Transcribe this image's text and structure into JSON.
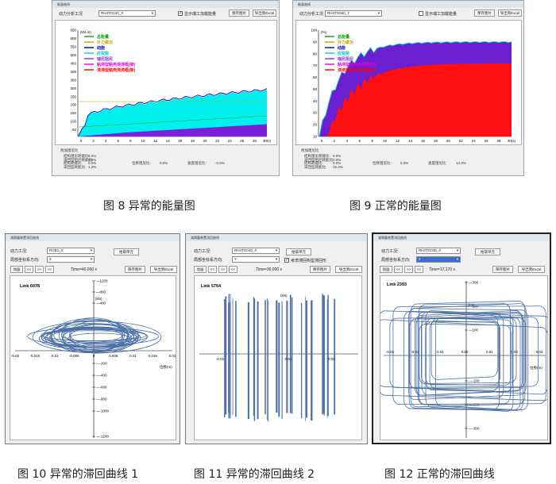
{
  "energy_common": {
    "condition_label": "动力分析工况",
    "show_rayleigh_label": "显示瑞工加载能量",
    "save_label": "保存图片",
    "export_label": "导出到Excel",
    "legend": [
      "总能量",
      "外力做功",
      "动能",
      "应变能",
      "瑞尼阻尼",
      "粘滞型粘壳滞滞框(架)",
      "滞滞型粘壳滞滞框(架)"
    ],
    "legend_colors": [
      "#00aa00",
      "#c8a000",
      "#0000cc",
      "#00cccc",
      "#8a2be2",
      "#dd00dd",
      "#ff0000"
    ],
    "info_title": "附加阻尼比",
    "info_rows": [
      "结构阻尼耗能比:",
      "滞回型阻尼耗能比:",
      "结构耗能比:",
      "滞回型耗能比:"
    ]
  },
  "fig8": {
    "window_title": "能量曲线",
    "condition_value": "RH4TG040_X",
    "y_ticks": [
      "650",
      "600",
      "550",
      "500",
      "450",
      "400",
      "350",
      "300",
      "250",
      "200",
      "150",
      "100",
      "50"
    ],
    "x_ticks": [
      "0",
      "2",
      "4",
      "6",
      "8",
      "10",
      "12",
      "14",
      "16",
      "18",
      "20",
      "22",
      "24",
      "26",
      "28",
      "30(s)"
    ],
    "y_unit": "(kN·m)",
    "info_values": [
      "5.0%",
      "0.0%",
      "0.0%",
      "1.2%"
    ],
    "info_extra": [
      "位移阻尼比:",
      "0.0%",
      "速度阻尼比:",
      "-0.8%"
    ],
    "caption": "图 8  异常的能量图"
  },
  "fig9": {
    "window_title": "能量曲线",
    "condition_value": "RH4TG040_Y",
    "y_ticks": [
      "100",
      "90",
      "80",
      "70",
      "60",
      "50",
      "40",
      "30",
      "20",
      "10"
    ],
    "x_ticks": [
      "0",
      "2",
      "4",
      "6",
      "8",
      "10",
      "12",
      "14",
      "16",
      "18",
      "20",
      "22",
      "24",
      "26",
      "28",
      "30(s)"
    ],
    "y_unit": "(%)",
    "info_values": [
      "5.0%",
      "0.0%",
      "0.0%",
      "15.4%"
    ],
    "info_extra": [
      "位移阻尼比:",
      "0.0%",
      "速度阻尼比:",
      "14.4%"
    ],
    "caption": "图 9 正常的能量图"
  },
  "fig10": {
    "window_title": "减隔震装置滞回曲线",
    "condition_label": "动力工况:",
    "condition_value": "RGB1_X",
    "direction_label": "局部坐标系方向:",
    "direction_value": "3",
    "button": "拾取单元",
    "nav": [
      "动画",
      "<<",
      ">>",
      "<<"
    ],
    "time_text": "Time=40.000 s",
    "save_label": "保存图片",
    "export_label": "导出到Excel",
    "link": "Link 6078",
    "force_label": "(kN)",
    "disp_label": "位移(m)",
    "y_ticks": [
      "1200",
      "800",
      "400",
      "-200",
      "-400",
      "-600",
      "-800",
      "-1000",
      "-1200"
    ],
    "x_ticks": [
      "-0.02",
      "-0.015",
      "-0.01",
      "-0.005",
      "0",
      "0.005",
      "0.01",
      "0.015",
      "0.02"
    ],
    "caption": "图 10 异常的滞回曲线 1"
  },
  "fig11": {
    "window_title": "减隔震装置滞回曲线",
    "condition_label": "动力工况:",
    "condition_value": "RH4TG040_X",
    "direction_label": "局部坐标系方向:",
    "direction_value": "Y",
    "button": "拾取单元",
    "checkbox": "考虑滞回构型滞回形",
    "nav": [
      "动画",
      "<<",
      ">>",
      "<<"
    ],
    "time_text": "Time=30.000 s",
    "save_label": "保存图片",
    "export_label": "导出到Excel",
    "link": "Link 5764",
    "force_label": "(kN)",
    "x_ticks": [
      "-0.01",
      "0.01",
      "0.02"
    ],
    "caption": "图 11    异常的滞回曲线 2"
  },
  "fig12": {
    "window_title": "减隔震装置滞回曲线",
    "condition_label": "动力工况:",
    "condition_value": "RH2TG045_X",
    "direction_label": "局部坐标系方向:",
    "direction_value": "2",
    "button": "拾取单元",
    "nav": [
      "动画",
      "<<",
      ">>",
      "<<"
    ],
    "time_text": "Time=17.170 s",
    "save_label": "保存图片",
    "export_label": "导出到Excel",
    "link": "Link 2393",
    "force_label": "(kN)",
    "disp_label": "位移(m)",
    "y_ticks": [
      "300",
      "200",
      "100",
      "-100",
      "-200",
      "-300"
    ],
    "x_ticks": [
      "-0.03",
      "-0.02",
      "-0.01",
      "0.00",
      "0.01",
      "0.02",
      "0.03"
    ],
    "caption": "图 12    正常的滞回曲线"
  }
}
